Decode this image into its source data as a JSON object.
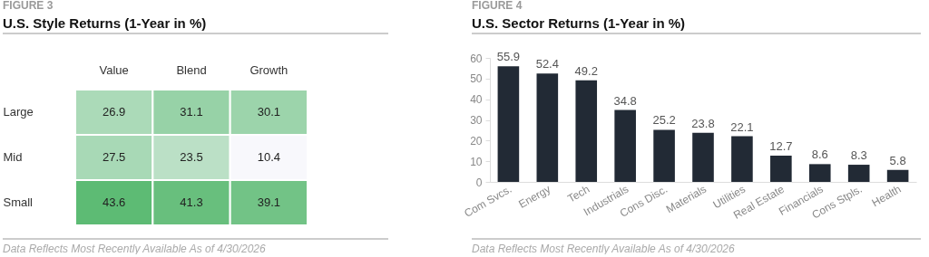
{
  "chart_data": [
    {
      "type": "heatmap",
      "title": "U.S. Style Returns (1-Year in %)",
      "categories": [
        "Value",
        "Blend",
        "Growth"
      ],
      "y_categories": [
        "Large",
        "Mid",
        "Small"
      ],
      "cells": [
        [
          26.9,
          31.1,
          30.1
        ],
        [
          27.5,
          23.5,
          10.4
        ],
        [
          43.6,
          41.3,
          39.1
        ]
      ],
      "data_labels": true,
      "annotations": [
        "FIGURE 3",
        "Data Reflects Most Recently Available As of 4/30/2026"
      ]
    },
    {
      "type": "bar",
      "title": "U.S. Sector Returns (1-Year in %)",
      "categories": [
        "Com Svcs.",
        "Energy",
        "Tech",
        "Industrials",
        "Cons Disc.",
        "Materials",
        "Utilities",
        "Real Estate",
        "Financials",
        "Cons Stpls.",
        "Health"
      ],
      "values": [
        55.9,
        52.4,
        49.2,
        34.8,
        25.2,
        23.8,
        22.1,
        12.7,
        8.6,
        8.3,
        5.8
      ],
      "color": "#222a35",
      "ylim": [
        0,
        60
      ],
      "yticks": [
        0,
        10,
        20,
        30,
        40,
        50,
        60
      ],
      "grid": false,
      "data_labels": true,
      "annotations": [
        "FIGURE 4",
        "Data Reflects Most Recently Available As of 4/30/2026"
      ]
    }
  ]
}
